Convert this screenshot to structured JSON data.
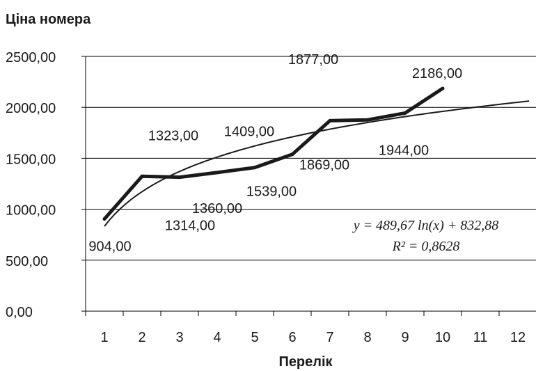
{
  "chart_data": {
    "type": "line",
    "title": "Ціна номера",
    "xlabel": "Перелік",
    "ylabel": "",
    "ylim": [
      0,
      2500
    ],
    "y_ticks": [
      "0,00",
      "500,00",
      "1000,00",
      "1500,00",
      "2000,00",
      "2500,00"
    ],
    "x_ticks": [
      "1",
      "2",
      "3",
      "4",
      "5",
      "6",
      "7",
      "8",
      "9",
      "10",
      "11",
      "12"
    ],
    "grid": "horizontal",
    "legend": "none",
    "series": [
      {
        "x": [
          1,
          2,
          3,
          4,
          5,
          6,
          7,
          8,
          9,
          10
        ],
        "values": [
          904,
          1323,
          1314,
          1360,
          1409,
          1539,
          1869,
          1877,
          1944,
          2186
        ]
      }
    ],
    "trendline": {
      "type": "logarithmic",
      "a": 489.67,
      "b": 832.88,
      "x_range": [
        1,
        12.3
      ],
      "equation": "y = 489,67 ln(x) + 832,88",
      "r2_label": "R² = 0,8628"
    },
    "data_labels": [
      "904,00",
      "1323,00",
      "1314,00",
      "1360,00",
      "1409,00",
      "1539,00",
      "1869,00",
      "1877,00",
      "1944,00",
      "2186,00"
    ],
    "colors": {
      "series": "#1a1a1a",
      "trend": "#1a1a1a",
      "grid": "#000000",
      "text": "#1a1a1a"
    }
  }
}
